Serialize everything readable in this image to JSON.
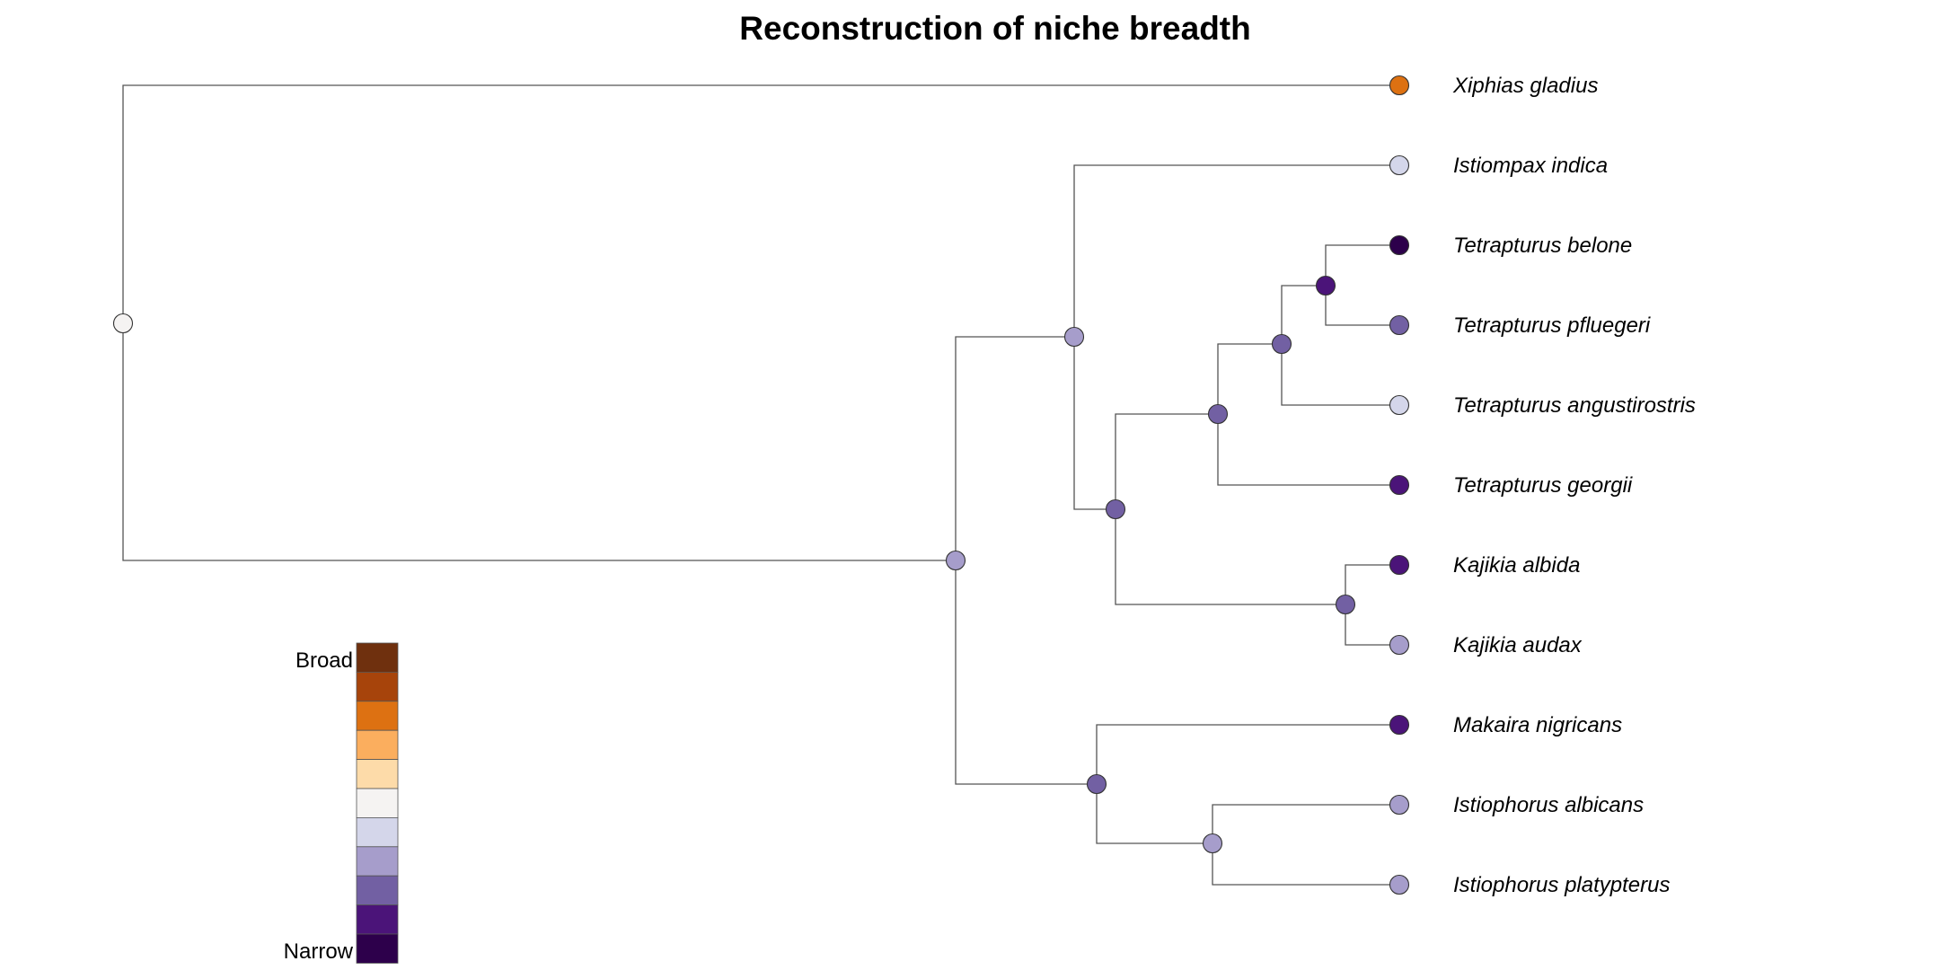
{
  "title": "Reconstruction of niche breadth",
  "palette": [
    "#2D004B",
    "#4B1479",
    "#7260A3",
    "#A69DCB",
    "#D4D6EA",
    "#F5F3F2",
    "#FDDBA9",
    "#FBAE5E",
    "#DD7112",
    "#A7440B",
    "#6F300E"
  ],
  "legend": {
    "high_label": "Broad",
    "low_label": "Narrow"
  },
  "tips": [
    {
      "name": "Xiphias gladius",
      "level": 8
    },
    {
      "name": "Istiompax indica",
      "level": 4
    },
    {
      "name": "Tetrapturus belone",
      "level": 0
    },
    {
      "name": "Tetrapturus pfluegeri",
      "level": 2
    },
    {
      "name": "Tetrapturus angustirostris",
      "level": 4
    },
    {
      "name": "Tetrapturus georgii",
      "level": 1
    },
    {
      "name": "Kajikia albida",
      "level": 1
    },
    {
      "name": "Kajikia audax",
      "level": 3
    },
    {
      "name": "Makaira nigricans",
      "level": 1
    },
    {
      "name": "Istiophorus albicans",
      "level": 3
    },
    {
      "name": "Istiophorus platypterus",
      "level": 3
    }
  ],
  "tree": {
    "id": "root",
    "level": 5,
    "children": [
      {
        "tip": 0
      },
      {
        "id": "istiophoridae",
        "level": 3,
        "children": [
          {
            "id": "marlin-clade",
            "level": 3,
            "children": [
              {
                "tip": 1
              },
              {
                "id": "tetrapturus-kajikia",
                "level": 2,
                "children": [
                  {
                    "id": "tetrapturus-clade",
                    "level": 2,
                    "children": [
                      {
                        "id": "tetrapturus-inner",
                        "level": 2,
                        "children": [
                          {
                            "id": "belone-pfluegeri",
                            "level": 1,
                            "children": [
                              {
                                "tip": 2
                              },
                              {
                                "tip": 3
                              }
                            ]
                          },
                          {
                            "tip": 4
                          }
                        ]
                      },
                      {
                        "tip": 5
                      }
                    ]
                  },
                  {
                    "id": "kajikia-clade",
                    "level": 2,
                    "children": [
                      {
                        "tip": 6
                      },
                      {
                        "tip": 7
                      }
                    ]
                  }
                ]
              }
            ]
          },
          {
            "id": "makaira-istiophorus",
            "level": 2,
            "children": [
              {
                "tip": 8
              },
              {
                "id": "istiophorus-clade",
                "level": 3,
                "children": [
                  {
                    "tip": 9
                  },
                  {
                    "tip": 10
                  }
                ]
              }
            ]
          }
        ]
      }
    ]
  }
}
